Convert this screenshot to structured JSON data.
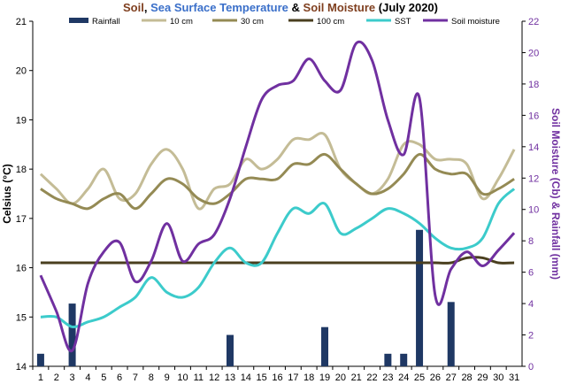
{
  "title": {
    "part1": "Soil",
    "sep": ", ",
    "part2": "Sea Surface Temperature",
    "amp": " & ",
    "part3": "Soil Moisture",
    "part4": " (July 2020)",
    "colors": {
      "soil": "#7f3f1f",
      "sep": "#000000",
      "sst": "#3a6fc9",
      "moisture": "#7f3f1f",
      "suffix": "#000000"
    }
  },
  "chart_data": {
    "type": "line",
    "title": "Soil, Sea Surface Temperature & Soil Moisture (July 2020)",
    "xlabel": "",
    "ylabel": "Celsius (°C)",
    "y2label": "Soil Moisture (Cb) & Rainfall (mm)",
    "categories": [
      "1",
      "2",
      "3",
      "4",
      "5",
      "6",
      "7",
      "8",
      "9",
      "10",
      "11",
      "12",
      "13",
      "14",
      "15",
      "16",
      "17",
      "18",
      "19",
      "20",
      "21",
      "22",
      "23",
      "24",
      "25",
      "26",
      "27",
      "28",
      "29",
      "30",
      "31"
    ],
    "ylim": [
      14,
      21
    ],
    "yticks": [
      "14",
      "15",
      "16",
      "17",
      "18",
      "19",
      "20",
      "21"
    ],
    "y2lim": [
      0,
      22
    ],
    "y2ticks": [
      "0",
      "2",
      "4",
      "6",
      "8",
      "10",
      "12",
      "14",
      "16",
      "18",
      "20",
      "22"
    ],
    "grid": false,
    "legend_position": "top",
    "series": [
      {
        "name": "Rainfall",
        "kind": "bar",
        "axis": "right",
        "color": "#1f3864",
        "values": [
          0.8,
          0,
          4,
          0,
          0,
          0,
          0,
          0,
          0,
          0,
          0,
          0,
          2,
          0,
          0,
          0,
          0,
          0,
          2.5,
          0,
          0,
          0,
          0.8,
          0.8,
          8.7,
          0,
          4.1,
          0,
          0,
          0,
          0
        ]
      },
      {
        "name": "10 cm",
        "kind": "line",
        "axis": "left",
        "color": "#c4bc96",
        "values": [
          17.9,
          17.6,
          17.3,
          17.6,
          18.0,
          17.4,
          17.5,
          18.1,
          18.4,
          18.0,
          17.2,
          17.6,
          17.7,
          18.2,
          18.0,
          18.2,
          18.6,
          18.6,
          18.7,
          18.0,
          17.7,
          17.5,
          17.8,
          18.5,
          18.5,
          18.2,
          18.2,
          18.1,
          17.4,
          17.8,
          18.4
        ]
      },
      {
        "name": "30 cm",
        "kind": "line",
        "axis": "left",
        "color": "#948a54",
        "values": [
          17.6,
          17.4,
          17.3,
          17.2,
          17.4,
          17.5,
          17.2,
          17.5,
          17.8,
          17.7,
          17.4,
          17.3,
          17.5,
          17.8,
          17.8,
          17.8,
          18.1,
          18.1,
          18.3,
          18.0,
          17.7,
          17.5,
          17.6,
          17.9,
          18.3,
          18.0,
          17.9,
          17.9,
          17.5,
          17.6,
          17.8
        ]
      },
      {
        "name": "100 cm",
        "kind": "line",
        "axis": "left",
        "color": "#4a3f1f",
        "values": [
          16.1,
          16.1,
          16.1,
          16.1,
          16.1,
          16.1,
          16.1,
          16.1,
          16.1,
          16.1,
          16.1,
          16.1,
          16.1,
          16.1,
          16.1,
          16.1,
          16.1,
          16.1,
          16.1,
          16.1,
          16.1,
          16.1,
          16.1,
          16.1,
          16.1,
          16.1,
          16.1,
          16.2,
          16.2,
          16.1,
          16.1
        ]
      },
      {
        "name": "SST",
        "kind": "line",
        "axis": "left",
        "color": "#3ccbcb",
        "values": [
          15.0,
          15.0,
          14.8,
          14.9,
          15.0,
          15.2,
          15.4,
          15.8,
          15.5,
          15.4,
          15.6,
          16.1,
          16.4,
          16.1,
          16.1,
          16.7,
          17.2,
          17.1,
          17.3,
          16.7,
          16.8,
          17.0,
          17.2,
          17.1,
          16.9,
          16.6,
          16.4,
          16.4,
          16.6,
          17.3,
          17.6
        ]
      },
      {
        "name": "Soil moisture",
        "kind": "line",
        "axis": "right",
        "color": "#7030a0",
        "values": [
          5.8,
          3.5,
          1.0,
          5.3,
          7.3,
          7.9,
          5.4,
          6.7,
          9.1,
          6.7,
          7.8,
          8.4,
          10.7,
          14.0,
          17.0,
          17.9,
          18.2,
          19.6,
          18.2,
          17.6,
          20.6,
          19.5,
          15.7,
          13.5,
          17.1,
          4.5,
          6.2,
          7.3,
          6.4,
          7.4,
          8.5
        ]
      }
    ]
  },
  "axes": {
    "ylabel": "Celsius (°C)",
    "y2label": "Soil Moisture (Cb) & Rainfall (mm)"
  }
}
